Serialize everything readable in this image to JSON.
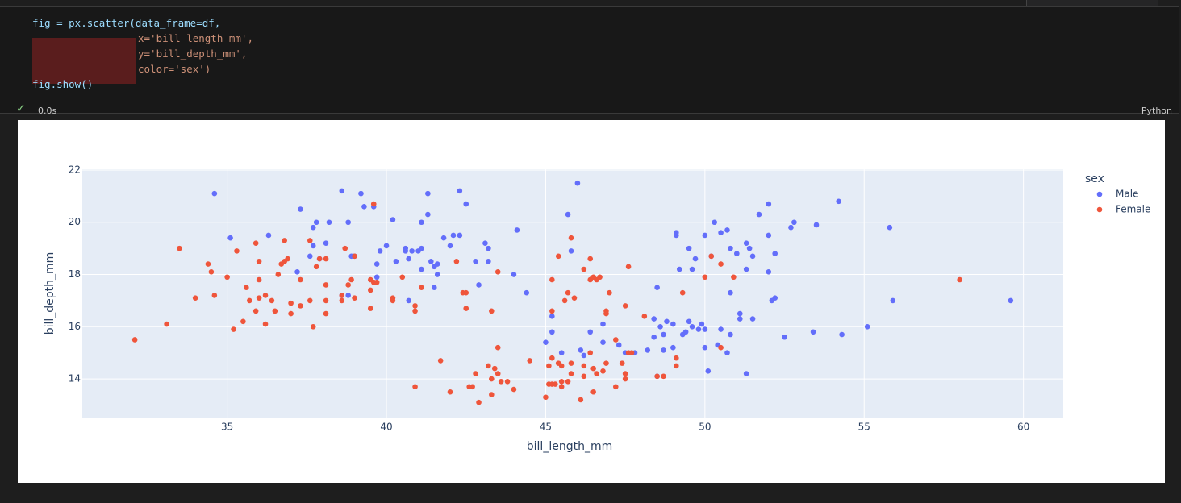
{
  "code": {
    "lines": [
      "fig = px.scatter(data_frame=df,",
      "x='bill_length_mm',",
      "y='bill_depth_mm',",
      "color='sex')",
      "fig.show()"
    ]
  },
  "status": {
    "time": "0.0s",
    "language": "Python"
  },
  "chart_data": {
    "type": "scatter",
    "x_label": "bill_length_mm",
    "y_label": "bill_depth_mm",
    "legend_title": "sex",
    "xlim": [
      30.45,
      61.25
    ],
    "ylim": [
      12.52,
      22.03
    ],
    "xticks": [
      35,
      40,
      45,
      50,
      55,
      60
    ],
    "yticks": [
      14,
      16,
      18,
      20,
      22
    ],
    "grid": true,
    "legend": "right",
    "series": [
      {
        "name": "Male",
        "color": "#636efa",
        "x": [
          34.6,
          35.1,
          36.3,
          37.3,
          37.7,
          37.8,
          38.2,
          38.1,
          38.6,
          38.8,
          39.2,
          39.3,
          39.6,
          39.0,
          38.9,
          37.2,
          37.6,
          37.7,
          37.9,
          38.6,
          38.8,
          39.7,
          39.8,
          40.0,
          39.7,
          40.3,
          40.6,
          40.6,
          40.7,
          40.8,
          41.0,
          41.1,
          41.1,
          41.4,
          41.5,
          40.7,
          41.1,
          40.2,
          41.3,
          41.3,
          42.3,
          42.5,
          41.8,
          42.1,
          42.3,
          42.0,
          41.6,
          41.6,
          41.5,
          42.8,
          42.9,
          43.2,
          43.1,
          43.2,
          44.1,
          44.0,
          44.4,
          45.0,
          45.2,
          45.2,
          45.5,
          45.7,
          45.8,
          46.0,
          46.1,
          46.2,
          46.4,
          46.8,
          46.8,
          47.3,
          47.5,
          47.8,
          48.2,
          48.4,
          48.5,
          48.5,
          48.6,
          48.7,
          48.7,
          48.4,
          48.8,
          49.0,
          49.1,
          49.1,
          49.0,
          49.2,
          49.3,
          49.4,
          49.5,
          49.5,
          49.6,
          49.6,
          49.7,
          49.8,
          49.9,
          50.0,
          50.0,
          50.0,
          50.1,
          50.3,
          50.2,
          50.4,
          50.5,
          50.5,
          50.7,
          50.8,
          50.8,
          50.7,
          50.8,
          51.0,
          51.1,
          51.1,
          51.3,
          51.3,
          51.3,
          51.4,
          51.5,
          51.5,
          51.7,
          52.0,
          52.0,
          52.0,
          52.1,
          52.2,
          52.2,
          52.5,
          52.7,
          52.8,
          53.4,
          53.5,
          54.2,
          54.3,
          55.1,
          55.8,
          55.9,
          59.6
        ],
        "y": [
          21.1,
          19.4,
          19.5,
          20.5,
          19.8,
          20.0,
          20.0,
          19.2,
          21.2,
          20.0,
          21.1,
          20.6,
          20.6,
          18.7,
          18.7,
          18.1,
          18.7,
          19.1,
          18.6,
          17.2,
          17.2,
          18.4,
          18.9,
          19.1,
          17.9,
          18.5,
          18.9,
          19.0,
          18.6,
          18.9,
          18.9,
          19.0,
          18.2,
          18.5,
          17.5,
          17.0,
          20.0,
          20.1,
          20.3,
          21.1,
          21.2,
          20.7,
          19.4,
          19.5,
          19.5,
          19.1,
          18.4,
          18.0,
          18.3,
          18.5,
          17.6,
          19.0,
          19.2,
          18.5,
          19.7,
          18.0,
          17.3,
          15.4,
          15.8,
          16.4,
          15.0,
          20.3,
          18.9,
          21.5,
          15.1,
          14.9,
          15.8,
          16.1,
          15.4,
          15.3,
          15.0,
          15.0,
          15.1,
          15.6,
          14.1,
          17.5,
          16.0,
          15.7,
          15.1,
          16.3,
          16.2,
          16.1,
          19.5,
          19.6,
          15.2,
          18.2,
          15.7,
          15.8,
          16.2,
          19.0,
          16.0,
          18.2,
          18.6,
          15.9,
          16.1,
          15.2,
          19.5,
          15.9,
          14.3,
          20.0,
          18.7,
          15.3,
          15.9,
          19.6,
          19.7,
          19.0,
          17.3,
          15.0,
          15.7,
          18.8,
          16.5,
          16.3,
          19.2,
          18.2,
          14.2,
          19.0,
          18.7,
          16.3,
          20.3,
          19.5,
          20.7,
          18.1,
          17.0,
          17.1,
          18.8,
          15.6,
          19.8,
          20.0,
          15.8,
          19.9,
          20.8,
          15.7,
          16.0,
          19.8,
          17.0,
          17.0
        ]
      },
      {
        "name": "Female",
        "color": "#ef553b",
        "x": [
          32.1,
          33.1,
          33.5,
          34.0,
          34.4,
          34.5,
          34.6,
          35.0,
          35.2,
          35.3,
          35.5,
          35.6,
          35.7,
          35.9,
          35.9,
          36.0,
          36.0,
          36.0,
          36.2,
          36.2,
          36.4,
          36.5,
          36.6,
          36.7,
          36.8,
          36.8,
          36.9,
          37.0,
          37.0,
          37.3,
          37.3,
          37.6,
          37.6,
          37.7,
          37.8,
          37.9,
          38.1,
          38.1,
          38.1,
          38.1,
          38.6,
          38.6,
          38.7,
          38.8,
          38.9,
          39.0,
          39.0,
          39.5,
          39.5,
          39.5,
          39.6,
          39.7,
          39.6,
          40.2,
          40.2,
          40.5,
          40.9,
          40.9,
          40.9,
          41.1,
          42.4,
          42.5,
          42.5,
          42.2,
          43.3,
          43.5,
          41.7,
          42.0,
          42.7,
          42.6,
          42.9,
          42.8,
          43.2,
          43.3,
          43.3,
          43.4,
          43.5,
          43.5,
          43.6,
          43.8,
          44.0,
          44.5,
          45.0,
          45.1,
          45.1,
          45.2,
          45.2,
          45.3,
          45.4,
          45.5,
          45.5,
          45.5,
          45.6,
          45.7,
          45.7,
          45.8,
          45.8,
          46.1,
          46.2,
          46.2,
          46.4,
          46.5,
          46.5,
          46.6,
          46.8,
          46.9,
          47.2,
          47.2,
          47.4,
          47.5,
          47.5,
          47.6,
          47.7,
          45.4,
          45.8,
          45.9,
          46.2,
          46.4,
          46.5,
          46.6,
          46.7,
          46.9,
          46.9,
          47.0,
          47.5,
          47.6,
          45.2,
          45.2,
          46.4,
          48.1,
          48.5,
          48.7,
          49.1,
          49.1,
          49.3,
          50.0,
          50.2,
          50.5,
          50.5,
          50.9,
          58.0
        ],
        "y": [
          15.5,
          16.1,
          19.0,
          17.1,
          18.4,
          18.1,
          17.2,
          17.9,
          15.9,
          18.9,
          16.2,
          17.5,
          17.0,
          19.2,
          16.6,
          17.8,
          17.1,
          18.5,
          16.1,
          17.2,
          17.0,
          16.6,
          18.0,
          18.4,
          18.5,
          19.3,
          18.6,
          16.9,
          16.5,
          16.8,
          17.8,
          19.3,
          17.0,
          16.0,
          18.3,
          18.6,
          18.6,
          17.6,
          17.0,
          16.5,
          17.0,
          17.2,
          19.0,
          17.6,
          17.8,
          17.1,
          18.7,
          17.4,
          16.7,
          17.8,
          17.7,
          17.7,
          20.7,
          17.0,
          17.1,
          17.9,
          16.6,
          16.8,
          13.7,
          17.5,
          17.3,
          17.3,
          16.7,
          18.5,
          16.6,
          18.1,
          14.7,
          13.5,
          13.7,
          13.7,
          13.1,
          14.2,
          14.5,
          14.0,
          13.4,
          14.4,
          14.2,
          15.2,
          13.9,
          13.9,
          13.6,
          14.7,
          13.3,
          13.8,
          14.5,
          13.8,
          14.8,
          13.8,
          14.6,
          13.7,
          13.9,
          14.5,
          17.0,
          13.9,
          17.3,
          14.2,
          14.6,
          13.2,
          14.1,
          14.5,
          15.0,
          14.4,
          13.5,
          14.2,
          14.3,
          14.6,
          13.7,
          15.5,
          14.6,
          14.0,
          14.2,
          15.0,
          15.0,
          18.7,
          19.4,
          17.1,
          18.2,
          17.8,
          17.9,
          17.8,
          17.9,
          16.6,
          16.5,
          17.3,
          16.8,
          18.3,
          16.6,
          17.8,
          18.6,
          16.4,
          14.1,
          14.1,
          14.8,
          14.5,
          17.3,
          17.9,
          18.7,
          18.4,
          15.2,
          17.9,
          17.8
        ]
      }
    ]
  }
}
